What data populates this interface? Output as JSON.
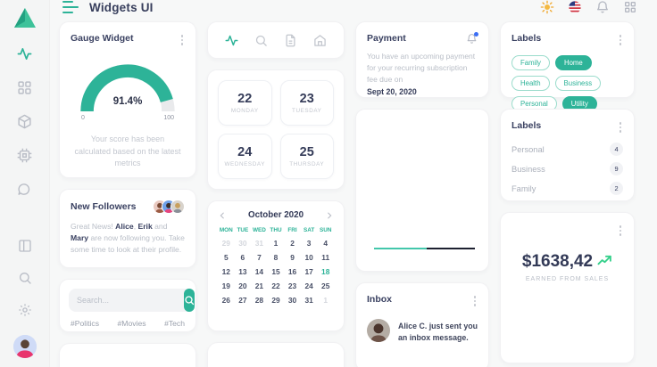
{
  "app": {
    "title": "Widgets UI"
  },
  "header": {
    "icons": [
      "sun-icon",
      "us-flag-icon",
      "bell-icon",
      "apps-icon"
    ]
  },
  "sidebar": {
    "items": [
      "activity",
      "dashboard",
      "box",
      "cpu",
      "chat",
      "layout",
      "search",
      "settings"
    ],
    "active_item": "activity"
  },
  "gauge_widget": {
    "title": "Gauge Widget",
    "value_label": "91.4%",
    "percent": 91.4,
    "min": "0",
    "max": "100",
    "caption": "Your score has been calculated based on the latest metrics",
    "accent_color": "#2db398",
    "track_color": "#e9eaec"
  },
  "icon_tabs": {
    "tabs": [
      "activity",
      "search",
      "file",
      "home"
    ],
    "active": "activity"
  },
  "date_tiles": [
    {
      "num": "22",
      "day": "MONDAY"
    },
    {
      "num": "23",
      "day": "TUESDAY"
    },
    {
      "num": "24",
      "day": "WEDNESDAY"
    },
    {
      "num": "25",
      "day": "THURSDAY"
    }
  ],
  "payment": {
    "title": "Payment",
    "body": "You have an upcoming payment for your recurring subscription fee due on",
    "due_date": "Sept 20, 2020"
  },
  "labels_tags": {
    "title": "Labels",
    "tags": [
      {
        "label": "Family",
        "filled": false
      },
      {
        "label": "Home",
        "filled": true
      },
      {
        "label": "Health",
        "filled": false
      },
      {
        "label": "Business",
        "filled": false
      },
      {
        "label": "Personal",
        "filled": false
      },
      {
        "label": "Utility",
        "filled": true
      }
    ]
  },
  "labels_counts": {
    "title": "Labels",
    "rows": [
      {
        "label": "Personal",
        "count": "4"
      },
      {
        "label": "Business",
        "count": "9"
      },
      {
        "label": "Family",
        "count": "2"
      }
    ]
  },
  "followers": {
    "title": "New Followers",
    "message_parts": [
      {
        "t": "Great News! "
      },
      {
        "t": "Alice",
        "b": true
      },
      {
        "t": ", "
      },
      {
        "t": "Erik",
        "b": true
      },
      {
        "t": " and "
      },
      {
        "t": "Mary",
        "b": true
      },
      {
        "t": " are now following you. Take some time to look at their profile."
      }
    ]
  },
  "search": {
    "placeholder": "Search...",
    "hashtags": [
      "#Politics",
      "#Movies",
      "#Tech"
    ]
  },
  "calendar": {
    "month_label": "October 2020",
    "weekdays": [
      "MON",
      "TUE",
      "WED",
      "THU",
      "FRI",
      "SAT",
      "SUN"
    ],
    "cells": [
      {
        "d": "29",
        "muted": true
      },
      {
        "d": "30",
        "muted": true
      },
      {
        "d": "31",
        "muted": true
      },
      {
        "d": "1"
      },
      {
        "d": "2"
      },
      {
        "d": "3"
      },
      {
        "d": "4"
      },
      {
        "d": "5"
      },
      {
        "d": "6"
      },
      {
        "d": "7"
      },
      {
        "d": "8"
      },
      {
        "d": "9"
      },
      {
        "d": "10"
      },
      {
        "d": "11"
      },
      {
        "d": "12"
      },
      {
        "d": "13"
      },
      {
        "d": "14"
      },
      {
        "d": "15"
      },
      {
        "d": "16"
      },
      {
        "d": "17"
      },
      {
        "d": "18",
        "active": true
      },
      {
        "d": "19"
      },
      {
        "d": "20"
      },
      {
        "d": "21"
      },
      {
        "d": "22"
      },
      {
        "d": "23"
      },
      {
        "d": "24"
      },
      {
        "d": "25"
      },
      {
        "d": "26"
      },
      {
        "d": "27"
      },
      {
        "d": "28"
      },
      {
        "d": "29"
      },
      {
        "d": "30"
      },
      {
        "d": "31"
      },
      {
        "d": "1",
        "muted": true
      }
    ]
  },
  "progress_widget": {
    "teal_percent": 52,
    "teal_color": "#43c7ab",
    "dark_color": "#1d2030"
  },
  "inbox": {
    "title": "Inbox",
    "message": "Alice C. just sent you an inbox message."
  },
  "sales": {
    "amount": "$1638,42",
    "caption": "EARNED FROM SALES",
    "trend_color": "#35d08b"
  }
}
